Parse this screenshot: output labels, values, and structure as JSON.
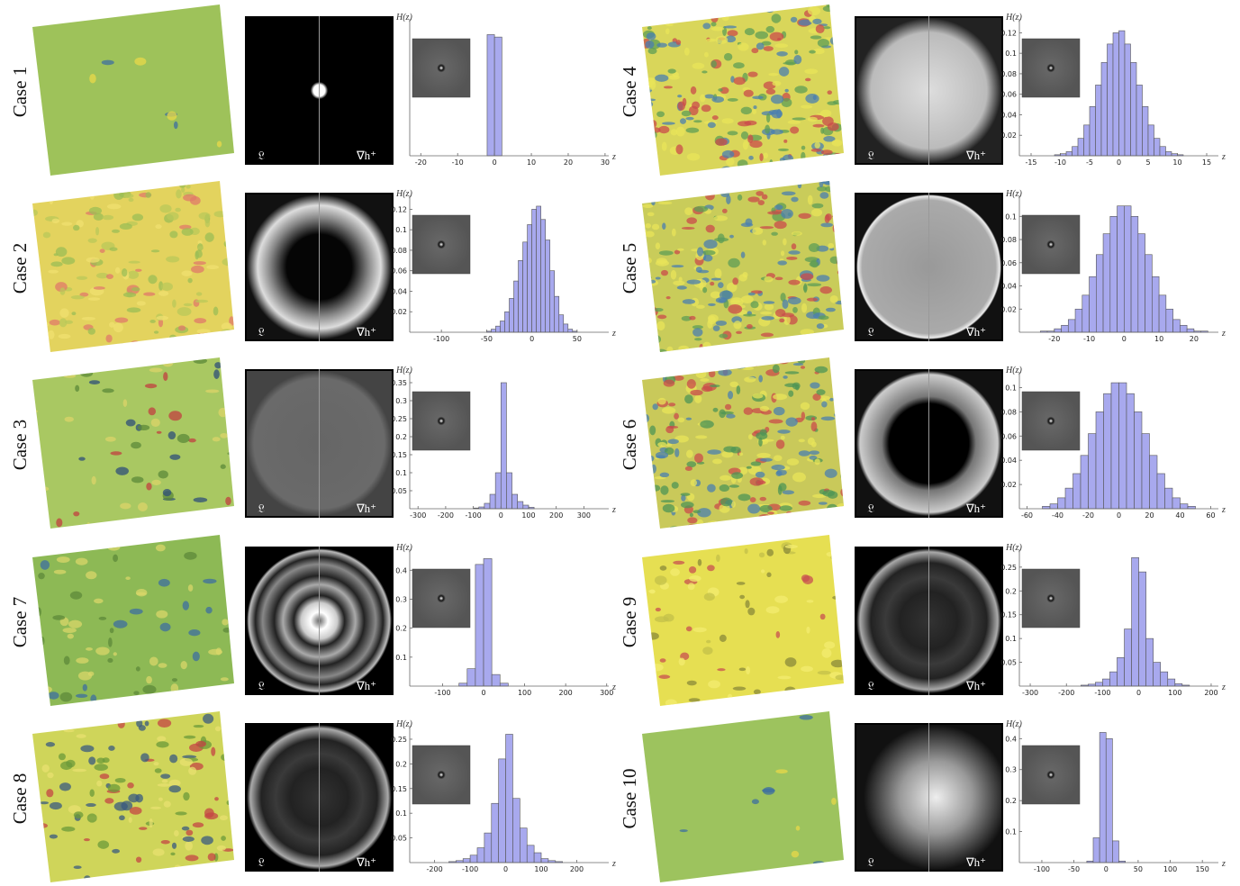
{
  "chart_data": [
    {
      "type": "histogram",
      "title": "Case 1",
      "xlabel": "z",
      "ylabel": "H(z)",
      "spectrum_labels": [
        "𝔏",
        "∇h⁺"
      ],
      "color": "#a8a9ee",
      "bins": [
        -2,
        0,
        2
      ],
      "values": [
        0.5,
        0.49
      ],
      "xlim": [
        -23,
        31
      ],
      "xticks": [
        -20,
        -10,
        0,
        10,
        20,
        30
      ],
      "ylim": [
        0,
        0.55
      ],
      "yticks": []
    },
    {
      "type": "histogram",
      "title": "Case 4",
      "xlabel": "z",
      "ylabel": "H(z)",
      "spectrum_labels": [
        "𝔏",
        "∇h⁺"
      ],
      "color": "#a8a9ee",
      "bins": [
        -11,
        -10,
        -9,
        -8,
        -7,
        -6,
        -5,
        -4,
        -3,
        -2,
        -1,
        0,
        1,
        2,
        3,
        4,
        5,
        6,
        7,
        8,
        9,
        10,
        11
      ],
      "values": [
        0.001,
        0.002,
        0.004,
        0.009,
        0.017,
        0.03,
        0.048,
        0.069,
        0.091,
        0.109,
        0.12,
        0.122,
        0.109,
        0.091,
        0.069,
        0.048,
        0.03,
        0.017,
        0.009,
        0.004,
        0.002,
        0.001
      ],
      "xlim": [
        -17,
        17
      ],
      "xticks": [
        -15,
        -10,
        -5,
        0,
        5,
        10,
        15
      ],
      "ylim": [
        0,
        0.13
      ],
      "yticks": [
        0.02,
        0.04,
        0.06,
        0.08,
        0.1,
        0.12
      ]
    },
    {
      "type": "histogram",
      "title": "Case 2",
      "xlabel": "z",
      "ylabel": "H(z)",
      "spectrum_labels": [
        "𝔏",
        "∇h⁺"
      ],
      "color": "#a8a9ee",
      "bins": [
        -50,
        -45,
        -40,
        -35,
        -30,
        -25,
        -20,
        -15,
        -10,
        -5,
        0,
        5,
        10,
        15,
        20,
        25,
        30,
        35,
        40,
        45,
        50
      ],
      "values": [
        0.001,
        0.003,
        0.006,
        0.011,
        0.02,
        0.033,
        0.05,
        0.07,
        0.088,
        0.105,
        0.12,
        0.123,
        0.11,
        0.09,
        0.06,
        0.035,
        0.017,
        0.008,
        0.003,
        0.001
      ],
      "xlim": [
        -135,
        85
      ],
      "xticks": [
        -100,
        -50,
        0,
        50
      ],
      "ylim": [
        0,
        0.13
      ],
      "yticks": [
        0.02,
        0.04,
        0.06,
        0.08,
        0.1,
        0.12
      ]
    },
    {
      "type": "histogram",
      "title": "Case 5",
      "xlabel": "z",
      "ylabel": "H(z)",
      "spectrum_labels": [
        "𝔏",
        "∇h⁺"
      ],
      "color": "#a8a9ee",
      "bins": [
        -24,
        -22,
        -20,
        -18,
        -16,
        -14,
        -12,
        -10,
        -8,
        -6,
        -4,
        -2,
        0,
        2,
        4,
        6,
        8,
        10,
        12,
        14,
        16,
        18,
        20,
        22,
        24
      ],
      "values": [
        0.001,
        0.001,
        0.003,
        0.006,
        0.011,
        0.02,
        0.032,
        0.048,
        0.067,
        0.085,
        0.1,
        0.109,
        0.109,
        0.1,
        0.085,
        0.067,
        0.048,
        0.032,
        0.02,
        0.011,
        0.006,
        0.003,
        0.001,
        0.001
      ],
      "xlim": [
        -30,
        27
      ],
      "xticks": [
        -20,
        -10,
        0,
        10,
        20
      ],
      "ylim": [
        0,
        0.115
      ],
      "yticks": [
        0.02,
        0.04,
        0.06,
        0.08,
        0.1
      ]
    },
    {
      "type": "histogram",
      "title": "Case 3",
      "xlabel": "z",
      "ylabel": "H(z)",
      "spectrum_labels": [
        "𝔏",
        "∇h⁺"
      ],
      "color": "#a8a9ee",
      "bins": [
        -100,
        -80,
        -60,
        -40,
        -20,
        0,
        20,
        40,
        60,
        80,
        100,
        120
      ],
      "values": [
        0.002,
        0.005,
        0.015,
        0.04,
        0.1,
        0.35,
        0.1,
        0.04,
        0.02,
        0.01,
        0.004
      ],
      "xlim": [
        -330,
        390
      ],
      "xticks": [
        -300,
        -200,
        -100,
        0,
        100,
        200,
        300
      ],
      "ylim": [
        0,
        0.37
      ],
      "yticks": [
        0.05,
        0.1,
        0.15,
        0.2,
        0.25,
        0.3,
        0.35
      ]
    },
    {
      "type": "histogram",
      "title": "Case 6",
      "xlabel": "z",
      "ylabel": "H(z)",
      "spectrum_labels": [
        "𝔏",
        "∇h⁺"
      ],
      "color": "#a8a9ee",
      "bins": [
        -50,
        -45,
        -40,
        -35,
        -30,
        -25,
        -20,
        -15,
        -10,
        -5,
        0,
        5,
        10,
        15,
        20,
        25,
        30,
        35,
        40,
        45,
        50
      ],
      "values": [
        0.002,
        0.004,
        0.009,
        0.017,
        0.029,
        0.044,
        0.062,
        0.08,
        0.095,
        0.104,
        0.104,
        0.095,
        0.08,
        0.062,
        0.044,
        0.029,
        0.017,
        0.009,
        0.004,
        0.002
      ],
      "xlim": [
        -65,
        65
      ],
      "xticks": [
        -60,
        -40,
        -20,
        0,
        20,
        40,
        60
      ],
      "ylim": [
        0,
        0.11
      ],
      "yticks": [
        0.02,
        0.04,
        0.06,
        0.08,
        0.1
      ]
    },
    {
      "type": "histogram",
      "title": "Case 7",
      "xlabel": "z",
      "ylabel": "H(z)",
      "spectrum_labels": [
        "𝔏",
        "∇h⁺"
      ],
      "color": "#a8a9ee",
      "bins": [
        -60,
        -40,
        -20,
        0,
        20,
        40,
        60
      ],
      "values": [
        0.01,
        0.06,
        0.42,
        0.44,
        0.04,
        0.01
      ],
      "xlim": [
        -180,
        305
      ],
      "xticks": [
        -100,
        0,
        100,
        200,
        300
      ],
      "ylim": [
        0,
        0.46
      ],
      "yticks": [
        0.1,
        0.2,
        0.3,
        0.4
      ]
    },
    {
      "type": "histogram",
      "title": "Case 9",
      "xlabel": "z",
      "ylabel": "H(z)",
      "spectrum_labels": [
        "𝔏",
        "∇h⁺"
      ],
      "color": "#a8a9ee",
      "bins": [
        -160,
        -140,
        -120,
        -100,
        -80,
        -60,
        -40,
        -20,
        0,
        20,
        40,
        60,
        80,
        100,
        120,
        140
      ],
      "values": [
        0.002,
        0.004,
        0.008,
        0.015,
        0.03,
        0.06,
        0.12,
        0.27,
        0.24,
        0.1,
        0.05,
        0.03,
        0.015,
        0.005,
        0.002
      ],
      "xlim": [
        -330,
        220
      ],
      "xticks": [
        -300,
        -200,
        -100,
        0,
        100,
        200
      ],
      "ylim": [
        0,
        0.28
      ],
      "yticks": [
        0.05,
        0.1,
        0.15,
        0.2,
        0.25
      ]
    },
    {
      "type": "histogram",
      "title": "Case 8",
      "xlabel": "z",
      "ylabel": "H(z)",
      "spectrum_labels": [
        "𝔏",
        "∇h⁺"
      ],
      "color": "#a8a9ee",
      "bins": [
        -160,
        -140,
        -120,
        -100,
        -80,
        -60,
        -40,
        -20,
        0,
        20,
        40,
        60,
        80,
        100,
        120,
        140,
        160
      ],
      "values": [
        0.002,
        0.004,
        0.008,
        0.015,
        0.03,
        0.06,
        0.12,
        0.21,
        0.26,
        0.13,
        0.07,
        0.035,
        0.02,
        0.008,
        0.004,
        0.002
      ],
      "xlim": [
        -270,
        290
      ],
      "xticks": [
        -200,
        -100,
        0,
        100,
        200
      ],
      "ylim": [
        0,
        0.27
      ],
      "yticks": [
        0.05,
        0.1,
        0.15,
        0.2,
        0.25
      ]
    },
    {
      "type": "histogram",
      "title": "Case 10",
      "xlabel": "z",
      "ylabel": "H(z)",
      "spectrum_labels": [
        "𝔏",
        "∇h⁺"
      ],
      "color": "#a8a9ee",
      "bins": [
        -30,
        -20,
        -10,
        0,
        10,
        20,
        30
      ],
      "values": [
        0.005,
        0.08,
        0.42,
        0.4,
        0.07,
        0.005
      ],
      "xlim": [
        -135,
        175
      ],
      "xticks": [
        -100,
        -50,
        0,
        50,
        100,
        150
      ],
      "ylim": [
        0,
        0.43
      ],
      "yticks": [
        0.1,
        0.2,
        0.3,
        0.4
      ]
    }
  ]
}
